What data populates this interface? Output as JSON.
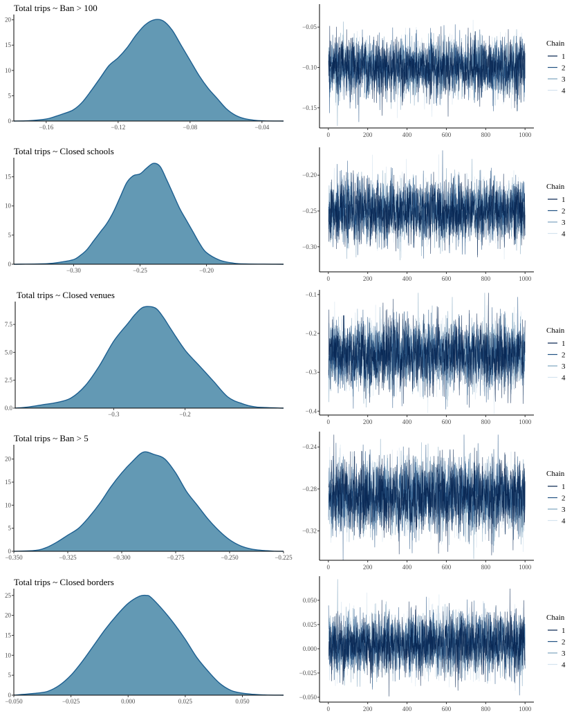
{
  "colors": {
    "density_fill": "#6399b4",
    "density_line": "#1d5f90",
    "chains": [
      "#011f4b",
      "#1f4f82",
      "#7ba2bd",
      "#d4e3ee"
    ]
  },
  "legend_title": "Chain",
  "legend_labels": [
    "1",
    "2",
    "3",
    "4"
  ],
  "chart_data": [
    {
      "type": "area",
      "title": "Total trips ~ Ban > 100",
      "xlabel": "",
      "ylabel": "",
      "xlim": [
        -0.178,
        -0.028
      ],
      "ylim": [
        0,
        20.5
      ],
      "xticks": [
        -0.16,
        -0.12,
        -0.08,
        -0.04
      ],
      "xtick_labels": [
        "−0.16",
        "−0.12",
        "−0.08",
        "−0.04"
      ],
      "yticks": [
        0,
        5,
        10,
        15,
        20
      ],
      "ytick_labels": [
        "0",
        "5",
        "10",
        "15",
        "20"
      ],
      "x": [
        -0.178,
        -0.17,
        -0.16,
        -0.155,
        -0.15,
        -0.145,
        -0.14,
        -0.135,
        -0.13,
        -0.125,
        -0.12,
        -0.115,
        -0.11,
        -0.105,
        -0.1,
        -0.095,
        -0.09,
        -0.085,
        -0.08,
        -0.075,
        -0.07,
        -0.065,
        -0.06,
        -0.055,
        -0.05,
        -0.045,
        -0.04,
        -0.028
      ],
      "y": [
        0,
        0.05,
        0.4,
        0.9,
        1.5,
        2.2,
        3.7,
        6.0,
        8.5,
        11.0,
        12.5,
        14.5,
        17.0,
        19.0,
        20.0,
        19.8,
        18.0,
        15.0,
        12.0,
        9.0,
        6.5,
        4.5,
        2.5,
        1.2,
        0.5,
        0.2,
        0.05,
        0
      ]
    },
    {
      "type": "line",
      "title": "",
      "xlabel": "",
      "ylabel": "",
      "xlim": [
        -45,
        1045
      ],
      "ylim": [
        -0.175,
        -0.025
      ],
      "xticks": [
        0,
        200,
        400,
        600,
        800,
        1000
      ],
      "xtick_labels": [
        "0",
        "200",
        "400",
        "600",
        "800",
        "1000"
      ],
      "yticks": [
        -0.15,
        -0.1,
        -0.05
      ],
      "ytick_labels": [
        "−0.15",
        "−0.10",
        "−0.05"
      ],
      "iterations": 1000,
      "mean": -0.1,
      "sd": 0.018,
      "series": [
        {
          "name": "1"
        },
        {
          "name": "2"
        },
        {
          "name": "3"
        },
        {
          "name": "4"
        }
      ]
    },
    {
      "type": "area",
      "title": "Total trips ~ Closed schools",
      "xlabel": "",
      "ylabel": "",
      "xlim": [
        -0.345,
        -0.142
      ],
      "ylim": [
        0,
        17.8
      ],
      "xticks": [
        -0.3,
        -0.25,
        -0.2
      ],
      "xtick_labels": [
        "−0.30",
        "−0.25",
        "−0.20"
      ],
      "yticks": [
        0,
        5,
        10,
        15
      ],
      "ytick_labels": [
        "0",
        "5",
        "10",
        "15"
      ],
      "x": [
        -0.345,
        -0.32,
        -0.31,
        -0.3,
        -0.295,
        -0.29,
        -0.285,
        -0.28,
        -0.275,
        -0.27,
        -0.265,
        -0.26,
        -0.255,
        -0.25,
        -0.245,
        -0.24,
        -0.235,
        -0.23,
        -0.225,
        -0.22,
        -0.215,
        -0.21,
        -0.205,
        -0.2,
        -0.19,
        -0.18,
        -0.17,
        -0.142
      ],
      "y": [
        0,
        0.1,
        0.35,
        0.8,
        1.5,
        2.5,
        4.0,
        5.5,
        7.0,
        9.0,
        11.5,
        14.0,
        15.2,
        15.5,
        16.5,
        17.3,
        16.8,
        14.5,
        12.0,
        9.5,
        7.5,
        5.5,
        3.5,
        2.0,
        0.7,
        0.2,
        0.05,
        0
      ]
    },
    {
      "type": "line",
      "title": "",
      "xlabel": "",
      "ylabel": "",
      "xlim": [
        -45,
        1045
      ],
      "ylim": [
        -0.335,
        -0.165
      ],
      "xticks": [
        0,
        200,
        400,
        600,
        800,
        1000
      ],
      "xtick_labels": [
        "0",
        "200",
        "400",
        "600",
        "800",
        "1000"
      ],
      "yticks": [
        -0.3,
        -0.25,
        -0.2
      ],
      "ytick_labels": [
        "−0.30",
        "−0.25",
        "−0.20"
      ],
      "iterations": 1000,
      "mean": -0.25,
      "sd": 0.022,
      "series": [
        {
          "name": "1"
        },
        {
          "name": "2"
        },
        {
          "name": "3"
        },
        {
          "name": "4"
        }
      ]
    },
    {
      "type": "area",
      "title": "Total trips ~ Closed venues",
      "xlabel": "",
      "ylabel": "",
      "xlim": [
        -0.438,
        -0.062
      ],
      "ylim": [
        0,
        9.3
      ],
      "xticks": [
        -0.3,
        -0.2
      ],
      "xtick_labels": [
        "−0.3",
        "−0.2"
      ],
      "yticks": [
        0,
        2.5,
        5,
        7.5
      ],
      "ytick_labels": [
        "0.0",
        "2.5",
        "5.0",
        "7.5"
      ],
      "x": [
        -0.438,
        -0.42,
        -0.4,
        -0.38,
        -0.36,
        -0.34,
        -0.32,
        -0.3,
        -0.28,
        -0.27,
        -0.26,
        -0.25,
        -0.24,
        -0.23,
        -0.22,
        -0.2,
        -0.18,
        -0.16,
        -0.14,
        -0.12,
        -0.1,
        -0.062
      ],
      "y": [
        0,
        0.1,
        0.3,
        0.5,
        0.9,
        2.0,
        3.8,
        6.0,
        7.6,
        8.4,
        9.0,
        9.1,
        8.9,
        8.1,
        7.1,
        5.2,
        3.8,
        2.4,
        1.0,
        0.4,
        0.1,
        0
      ]
    },
    {
      "type": "line",
      "title": "",
      "xlabel": "",
      "ylabel": "",
      "xlim": [
        -45,
        1045
      ],
      "ylim": [
        -0.41,
        -0.095
      ],
      "xticks": [
        0,
        200,
        400,
        600,
        800,
        1000
      ],
      "xtick_labels": [
        "0",
        "200",
        "400",
        "600",
        "800",
        "1000"
      ],
      "yticks": [
        -0.4,
        -0.3,
        -0.2,
        -0.1
      ],
      "ytick_labels": [
        "−0.4",
        "−0.3",
        "−0.2",
        "−0.1"
      ],
      "iterations": 1000,
      "mean": -0.255,
      "sd": 0.045,
      "series": [
        {
          "name": "1"
        },
        {
          "name": "2"
        },
        {
          "name": "3"
        },
        {
          "name": "4"
        }
      ]
    },
    {
      "type": "area",
      "title": "Total trips ~ Ban > 5",
      "xlabel": "",
      "ylabel": "",
      "xlim": [
        -0.35,
        -0.225
      ],
      "ylim": [
        0,
        22.5
      ],
      "xticks": [
        -0.35,
        -0.325,
        -0.3,
        -0.275,
        -0.25,
        -0.225
      ],
      "xtick_labels": [
        "−0.350",
        "−0.325",
        "−0.300",
        "−0.275",
        "−0.250",
        "−0.225"
      ],
      "yticks": [
        0,
        5,
        10,
        15,
        20
      ],
      "ytick_labels": [
        "0",
        "5",
        "10",
        "15",
        "20"
      ],
      "x": [
        -0.35,
        -0.34,
        -0.335,
        -0.33,
        -0.325,
        -0.32,
        -0.315,
        -0.31,
        -0.305,
        -0.3,
        -0.295,
        -0.29,
        -0.285,
        -0.28,
        -0.275,
        -0.27,
        -0.265,
        -0.26,
        -0.255,
        -0.25,
        -0.245,
        -0.24,
        -0.235,
        -0.23,
        -0.225
      ],
      "y": [
        0,
        0.2,
        0.8,
        2.0,
        3.5,
        5.0,
        7.5,
        10.5,
        14.0,
        17.0,
        19.5,
        21.5,
        21.0,
        20.0,
        17.0,
        13.0,
        10.0,
        7.0,
        4.5,
        2.5,
        1.2,
        0.5,
        0.2,
        0.05,
        0
      ]
    },
    {
      "type": "line",
      "title": "",
      "xlabel": "",
      "ylabel": "",
      "xlim": [
        -45,
        1045
      ],
      "ylim": [
        -0.348,
        -0.228
      ],
      "xticks": [
        0,
        200,
        400,
        600,
        800,
        1000
      ],
      "xtick_labels": [
        "0",
        "200",
        "400",
        "600",
        "800",
        "1000"
      ],
      "yticks": [
        -0.32,
        -0.28,
        -0.24
      ],
      "ytick_labels": [
        "−0.32",
        "−0.28",
        "−0.24"
      ],
      "iterations": 1000,
      "mean": -0.287,
      "sd": 0.018,
      "series": [
        {
          "name": "1"
        },
        {
          "name": "2"
        },
        {
          "name": "3"
        },
        {
          "name": "4"
        }
      ]
    },
    {
      "type": "area",
      "title": "Total trips ~ Closed borders",
      "xlabel": "",
      "ylabel": "",
      "xlim": [
        -0.05,
        0.068
      ],
      "ylim": [
        0,
        26
      ],
      "xticks": [
        -0.05,
        -0.025,
        0,
        0.025,
        0.05
      ],
      "xtick_labels": [
        "−0.050",
        "−0.025",
        "0.000",
        "0.025",
        "0.050"
      ],
      "yticks": [
        0,
        5,
        10,
        15,
        20,
        25
      ],
      "ytick_labels": [
        "0",
        "5",
        "10",
        "15",
        "20",
        "25"
      ],
      "x": [
        -0.05,
        -0.04,
        -0.035,
        -0.03,
        -0.025,
        -0.02,
        -0.015,
        -0.01,
        -0.005,
        0,
        0.005,
        0.008,
        0.01,
        0.015,
        0.02,
        0.025,
        0.03,
        0.035,
        0.04,
        0.045,
        0.05,
        0.055,
        0.06,
        0.068
      ],
      "y": [
        0,
        0.5,
        1.0,
        2.5,
        5.0,
        8.5,
        12.5,
        16.5,
        20.0,
        23.0,
        24.8,
        25.0,
        24.5,
        21.5,
        18.0,
        14.0,
        9.5,
        6.0,
        3.0,
        1.2,
        0.5,
        0.2,
        0.05,
        0
      ]
    },
    {
      "type": "line",
      "title": "",
      "xlabel": "",
      "ylabel": "",
      "xlim": [
        -45,
        1045
      ],
      "ylim": [
        -0.055,
        0.072
      ],
      "xticks": [
        0,
        200,
        400,
        600,
        800,
        1000
      ],
      "xtick_labels": [
        "0",
        "200",
        "400",
        "600",
        "800",
        "1000"
      ],
      "yticks": [
        -0.05,
        -0.025,
        0,
        0.025,
        0.05
      ],
      "ytick_labels": [
        "−0.050",
        "−0.025",
        "0.000",
        "0.025",
        "0.050"
      ],
      "iterations": 1000,
      "mean": 0.005,
      "sd": 0.016,
      "series": [
        {
          "name": "1"
        },
        {
          "name": "2"
        },
        {
          "name": "3"
        },
        {
          "name": "4"
        }
      ]
    }
  ]
}
